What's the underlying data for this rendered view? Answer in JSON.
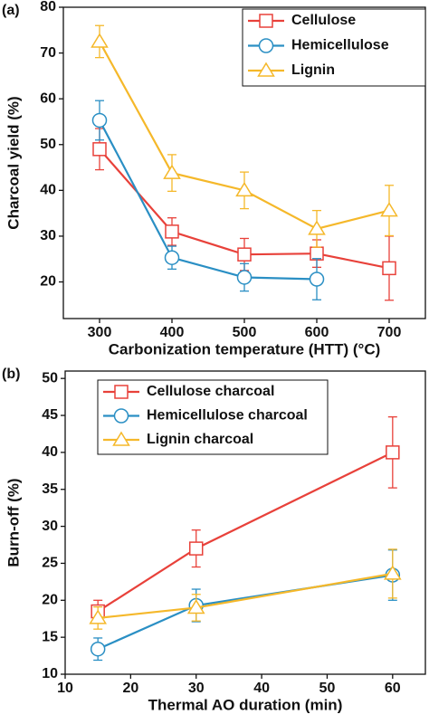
{
  "chart_data": [
    {
      "type": "line",
      "panel_label": "(a)",
      "x_label": "Carbonization temperature (HTT) (°C)",
      "y_label": "Charcoal yield (%)",
      "xlim": [
        250,
        750
      ],
      "xticks": [
        300,
        400,
        500,
        600,
        700
      ],
      "ylim": [
        12,
        80
      ],
      "yticks": [
        20,
        30,
        40,
        50,
        60,
        70,
        80
      ],
      "legend": "top-right",
      "series": [
        {
          "name": "Cellulose",
          "color": "#e8413a",
          "marker": "square",
          "x": [
            300,
            400,
            500,
            600,
            700
          ],
          "values": [
            49,
            31,
            26,
            26.2,
            23
          ],
          "errors": [
            4.5,
            3,
            3.5,
            3,
            7
          ]
        },
        {
          "name": "Hemicellulose",
          "color": "#2a8fc4",
          "marker": "circle",
          "x": [
            300,
            400,
            500,
            600
          ],
          "values": [
            55.3,
            25.3,
            21,
            20.6
          ],
          "errors": [
            4.3,
            2.5,
            3,
            4.5
          ]
        },
        {
          "name": "Lignin",
          "color": "#f5b82a",
          "marker": "triangle",
          "x": [
            300,
            400,
            500,
            600,
            700
          ],
          "values": [
            72.5,
            43.8,
            40,
            31.6,
            35.6
          ],
          "errors": [
            3.5,
            4,
            4,
            4,
            5.5
          ]
        }
      ]
    },
    {
      "type": "line",
      "panel_label": "(b)",
      "x_label": "Thermal AO duration (min)",
      "y_label": "Burn-off (%)",
      "xlim": [
        10,
        65
      ],
      "xticks": [
        10,
        20,
        30,
        40,
        50,
        60
      ],
      "ylim": [
        10,
        51
      ],
      "yticks": [
        10,
        15,
        20,
        25,
        30,
        35,
        40,
        45,
        50
      ],
      "legend": "top-left",
      "series": [
        {
          "name": "Cellulose charcoal",
          "color": "#e8413a",
          "marker": "square",
          "x": [
            15,
            30,
            60
          ],
          "values": [
            18.5,
            27,
            40
          ],
          "errors": [
            1.5,
            2.5,
            4.8
          ]
        },
        {
          "name": "Hemicellulose charcoal",
          "color": "#2a8fc4",
          "marker": "circle",
          "x": [
            15,
            30,
            60
          ],
          "values": [
            13.4,
            19.3,
            23.4
          ],
          "errors": [
            1.5,
            2.2,
            3.4
          ]
        },
        {
          "name": "Lignin charcoal",
          "color": "#f5b82a",
          "marker": "triangle",
          "x": [
            15,
            30,
            60
          ],
          "values": [
            17.6,
            19,
            23.6
          ],
          "errors": [
            1.5,
            1.8,
            3.3
          ]
        }
      ]
    }
  ]
}
